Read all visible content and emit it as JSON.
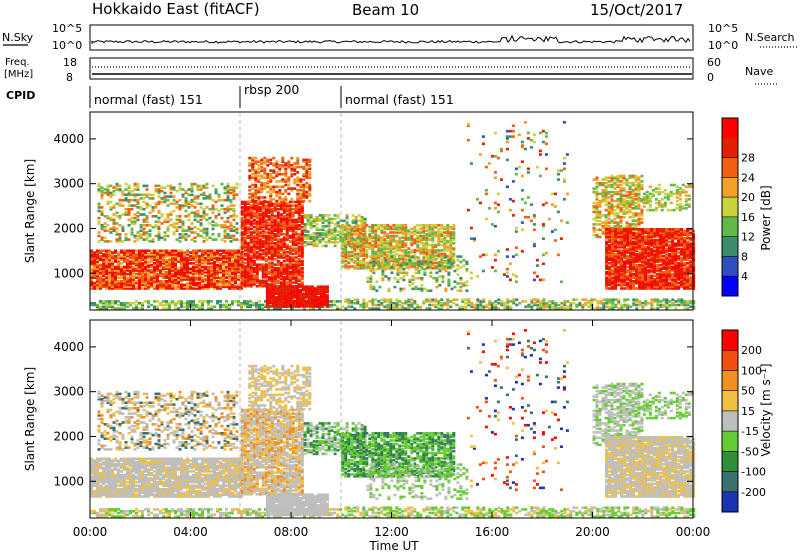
{
  "header": {
    "station": "Hokkaido East (fitACF)",
    "beam": "Beam 10",
    "date": "15/Oct/2017"
  },
  "strip_labels": {
    "nsky": "N.Sky",
    "nsky_top": "10^5",
    "nsky_bottom": "10^0",
    "nsearch": "N.Search",
    "nsearch_top": "10^5",
    "nsearch_bottom": "10^0",
    "freq_line1": "Freq.",
    "freq_line2": "[MHz]",
    "freq_top": "18",
    "freq_bottom": "8",
    "nave": "Nave",
    "nave_top": "60",
    "nave_bottom": "0",
    "cpid": "CPID"
  },
  "cpid_segments": [
    {
      "label": "normal (fast) 151",
      "start": 0,
      "end": 6
    },
    {
      "label": "rbsp 200",
      "start": 6,
      "end": 10
    },
    {
      "label": "normal (fast) 151",
      "start": 10,
      "end": 24
    }
  ],
  "chart_data": [
    {
      "type": "heatmap",
      "name": "power",
      "ylabel": "Slant Range [km]",
      "ylim": [
        180,
        4600
      ],
      "yticks": [
        "1000",
        "2000",
        "3000",
        "4000"
      ],
      "colorbar_label": "Power [dB]",
      "colorbar_ticks": [
        "4",
        "8",
        "12",
        "16",
        "20",
        "24",
        "28"
      ],
      "colors": [
        "#0000ff",
        "#2f4fbf",
        "#3c8c6e",
        "#5fba4a",
        "#c8d23a",
        "#f2a02a",
        "#f06010",
        "#e02000",
        "#ff0000"
      ]
    },
    {
      "type": "heatmap",
      "name": "velocity",
      "ylabel": "Slant Range [km]",
      "ylim": [
        180,
        4600
      ],
      "yticks": [
        "1000",
        "2000",
        "3000",
        "4000"
      ],
      "colorbar_label": "Velocity [m s⁻¹]",
      "colorbar_ticks": [
        "200",
        "100",
        "50",
        "15",
        "-15",
        "-50",
        "-100",
        "-200"
      ],
      "colors": [
        "#1a33b0",
        "#3c7070",
        "#2f8f3a",
        "#66cc33",
        "#bebebe",
        "#f0c040",
        "#f09020",
        "#f05010",
        "#ff0000"
      ]
    }
  ],
  "x_axis": {
    "label": "Time UT",
    "ticks": [
      "00:00",
      "04:00",
      "08:00",
      "12:00",
      "16:00",
      "20:00",
      "00:00"
    ]
  }
}
